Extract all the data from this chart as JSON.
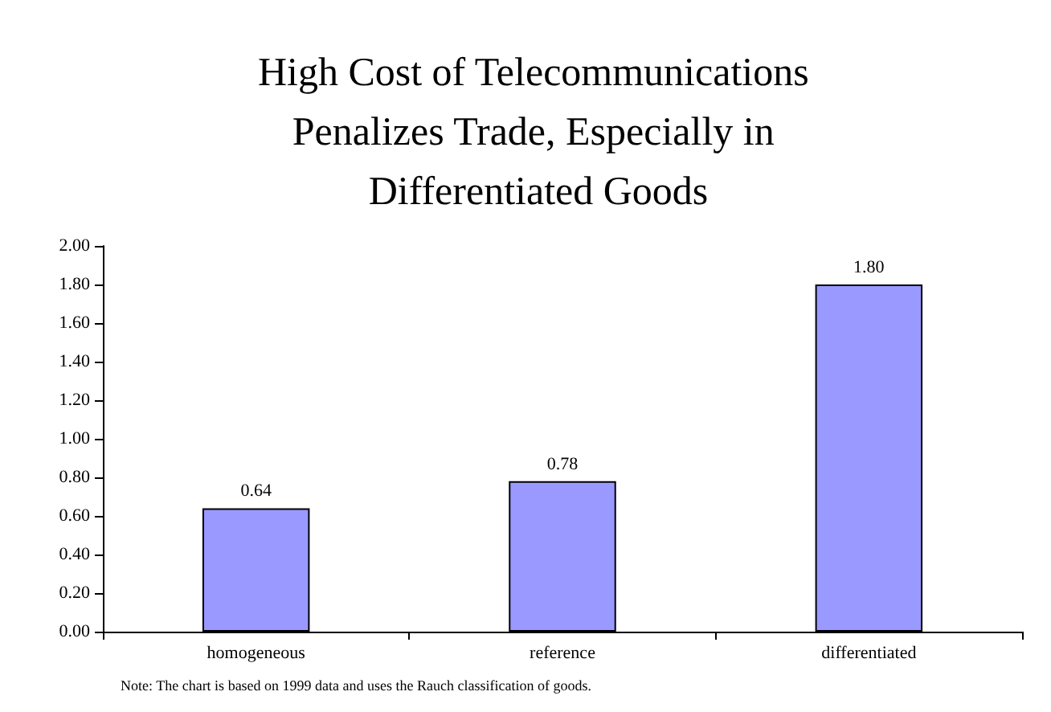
{
  "chart_data": {
    "type": "bar",
    "title": "High Cost of Telecommunications Penalizes Trade, Especially in Differentiated Goods",
    "categories": [
      "homogeneous",
      "reference",
      "differentiated"
    ],
    "values": [
      0.64,
      0.78,
      1.8
    ],
    "value_labels": [
      "0.64",
      "0.78",
      "1.80"
    ],
    "color": "#9999ff",
    "ylim": [
      0,
      2
    ],
    "yticks": [
      {
        "value": 0,
        "label": "0.00"
      },
      {
        "value": 0.2,
        "label": "0.20"
      },
      {
        "value": 0.4,
        "label": "0.40"
      },
      {
        "value": 0.6,
        "label": "0.60"
      },
      {
        "value": 0.8,
        "label": "0.80"
      },
      {
        "value": 1,
        "label": "1.00"
      },
      {
        "value": 1.2,
        "label": "1.20"
      },
      {
        "value": 1.4,
        "label": "1.40"
      },
      {
        "value": 1.6,
        "label": "1.60"
      },
      {
        "value": 1.8,
        "label": "1.80"
      },
      {
        "value": 2,
        "label": "2.00"
      }
    ],
    "grid": false,
    "annotations": [
      "Note: The chart is based on 1999 data and uses the Rauch classification of goods."
    ]
  }
}
